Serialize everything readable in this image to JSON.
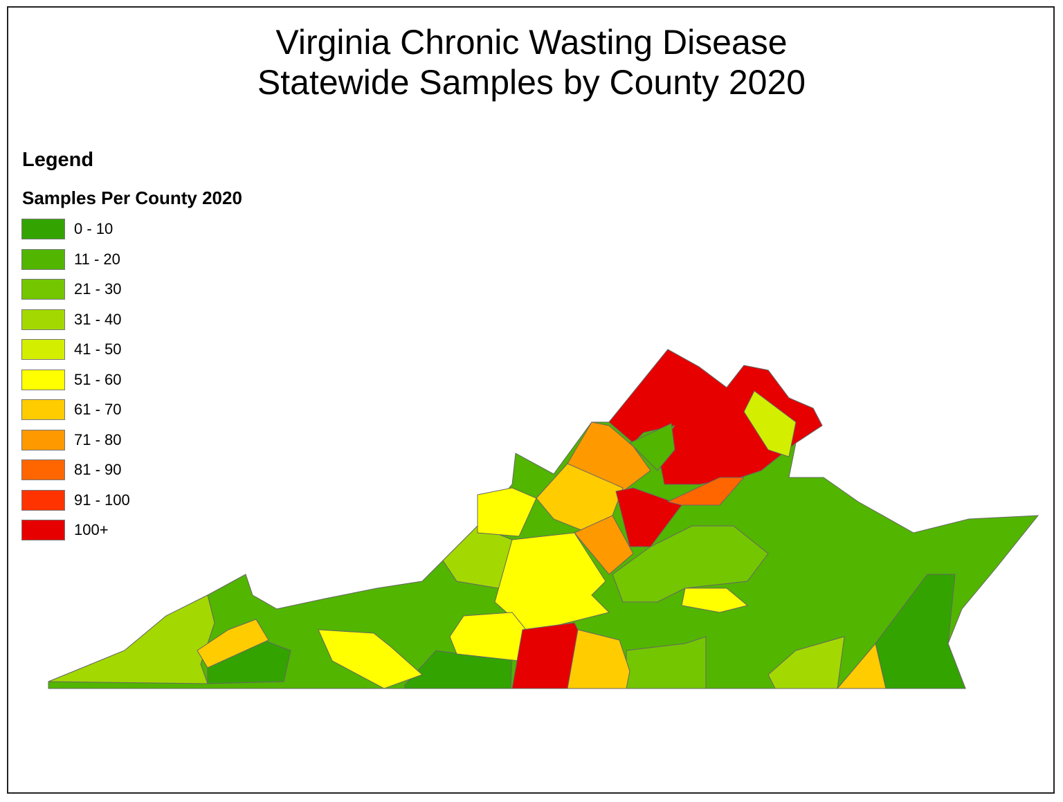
{
  "title_line1": "Virginia Chronic Wasting Disease",
  "title_line2": "Statewide Samples by County 2020",
  "legend": {
    "title": "Legend",
    "subtitle": "Samples Per County 2020",
    "classes": [
      {
        "label": "0 - 10",
        "color": "#33a300"
      },
      {
        "label": "11 - 20",
        "color": "#52b500"
      },
      {
        "label": "21 - 30",
        "color": "#73c600"
      },
      {
        "label": "31 - 40",
        "color": "#a3d900"
      },
      {
        "label": "41 - 50",
        "color": "#d4ee00"
      },
      {
        "label": "51 - 60",
        "color": "#ffff00"
      },
      {
        "label": "61 - 70",
        "color": "#ffcc00"
      },
      {
        "label": "71 - 80",
        "color": "#ff9900"
      },
      {
        "label": "81 - 90",
        "color": "#ff6600"
      },
      {
        "label": "91 - 100",
        "color": "#ff3300"
      },
      {
        "label": "100+",
        "color": "#e60000"
      }
    ]
  }
}
